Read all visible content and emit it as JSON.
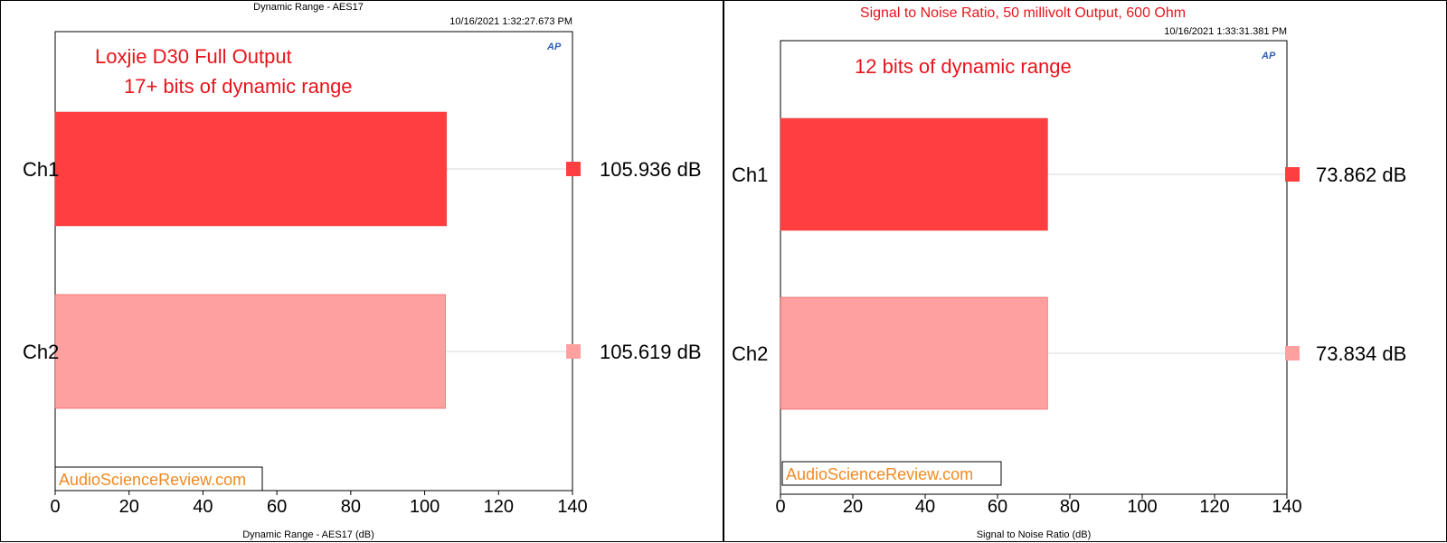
{
  "chart_data": [
    {
      "type": "bar",
      "orientation": "horizontal",
      "title": "Dynamic Range - AES17",
      "timestamp": "10/16/2021 1:32:27.673 PM",
      "annotations": [
        "Loxjie D30 Full Output",
        "17+ bits of dynamic range"
      ],
      "categories": [
        "Ch1",
        "Ch2"
      ],
      "values": [
        105.936,
        105.619
      ],
      "value_labels": [
        "105.936  dB",
        "105.619  dB"
      ],
      "colors": [
        "#ff3f3f",
        "#ffa0a0"
      ],
      "xlabel": "Dynamic Range - AES17 (dB)",
      "xlim": [
        0,
        140
      ],
      "xticks": [
        "0",
        "20",
        "40",
        "60",
        "80",
        "100",
        "120",
        "140"
      ],
      "grid": false,
      "logo": "AP",
      "watermark": "AudioScienceReview.com"
    },
    {
      "type": "bar",
      "orientation": "horizontal",
      "title": "Signal to Noise Ratio, 50 millivolt Output, 600 Ohm",
      "timestamp": "10/16/2021 1:33:31.381 PM",
      "annotations": [
        "12 bits of dynamic range"
      ],
      "categories": [
        "Ch1",
        "Ch2"
      ],
      "values": [
        73.862,
        73.834
      ],
      "value_labels": [
        "73.862  dB",
        "73.834  dB"
      ],
      "colors": [
        "#ff3f3f",
        "#ffa0a0"
      ],
      "xlabel": "Signal to Noise Ratio (dB)",
      "xlim": [
        0,
        140
      ],
      "xticks": [
        "0",
        "20",
        "40",
        "60",
        "80",
        "100",
        "120",
        "140"
      ],
      "grid": false,
      "logo": "AP",
      "watermark": "AudioScienceReview.com"
    }
  ]
}
